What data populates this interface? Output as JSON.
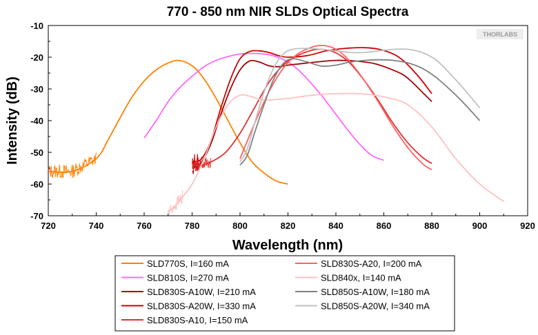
{
  "watermark": "THORLABS",
  "chart_data": {
    "type": "line",
    "title": "770 - 850 nm NIR SLDs Optical Spectra",
    "xlabel": "Wavelength (nm)",
    "ylabel": "Intensity (dB)",
    "xlim": [
      720,
      920
    ],
    "ylim": [
      -70,
      -10
    ],
    "xticks": [
      720,
      740,
      760,
      780,
      800,
      820,
      840,
      860,
      880,
      900,
      920
    ],
    "yticks": [
      -10,
      -20,
      -30,
      -40,
      -50,
      -60,
      -70
    ],
    "grid": false,
    "legend_position": "bottom",
    "series": [
      {
        "name": "SLD770S, I=160 mA",
        "color": "#ff8000",
        "noisy_below": 740,
        "x": [
          720,
          730,
          740,
          745,
          750,
          755,
          760,
          765,
          770,
          774,
          778,
          782,
          786,
          790,
          795,
          800,
          805,
          810,
          815,
          820
        ],
        "y": [
          -56,
          -56,
          -52,
          -46,
          -39,
          -32.5,
          -27.5,
          -24,
          -21.8,
          -21,
          -21.8,
          -24,
          -28,
          -33,
          -40,
          -47,
          -53,
          -56.5,
          -59,
          -60
        ]
      },
      {
        "name": "SLD810S, I=270 mA",
        "color": "#ff66ff",
        "x": [
          760,
          765,
          770,
          775,
          780,
          785,
          790,
          795,
          800,
          805,
          810,
          815,
          820,
          825,
          830,
          835,
          840,
          845,
          850,
          855,
          860
        ],
        "y": [
          -45.5,
          -40,
          -34,
          -29.5,
          -26,
          -23,
          -21,
          -19.8,
          -19,
          -18.8,
          -19,
          -19.8,
          -21.5,
          -24.5,
          -28.5,
          -33,
          -38,
          -43,
          -47.5,
          -51,
          -52.5
        ]
      },
      {
        "name": "SLD830S-A10W, I=210 mA",
        "color": "#a50000",
        "noisy_below": 784,
        "x": [
          780,
          784,
          788,
          792,
          796,
          800,
          804,
          808,
          812,
          816,
          820,
          826,
          832,
          840,
          848,
          856,
          862,
          868,
          872,
          876,
          880
        ],
        "y": [
          -55,
          -53,
          -47,
          -38,
          -30,
          -24,
          -21.2,
          -21.5,
          -22.7,
          -23,
          -22.5,
          -22,
          -21.5,
          -21,
          -21.2,
          -22,
          -23.5,
          -25.5,
          -28,
          -31,
          -34
        ]
      },
      {
        "name": "SLD830S-A20W, I=330 mA",
        "color": "#cc0000",
        "noisy_below": 784,
        "x": [
          780,
          784,
          788,
          792,
          796,
          800,
          804,
          808,
          812,
          816,
          820,
          828,
          836,
          844,
          852,
          858,
          864,
          868,
          872,
          876,
          880
        ],
        "y": [
          -53,
          -52,
          -46,
          -36,
          -27,
          -20.5,
          -18.2,
          -18,
          -18.5,
          -19.5,
          -20,
          -19.5,
          -18,
          -17.2,
          -17,
          -17.5,
          -19,
          -21,
          -24,
          -27.5,
          -31.5
        ]
      },
      {
        "name": "SLD830S-A10, I=150 mA",
        "color": "#e03030",
        "noisy_below": 788,
        "x": [
          780,
          784,
          788,
          794,
          800,
          806,
          812,
          818,
          824,
          830,
          834,
          838,
          842,
          846,
          852,
          858,
          864,
          870,
          876,
          880
        ],
        "y": [
          -54,
          -54,
          -53,
          -50,
          -44,
          -36,
          -28,
          -22.5,
          -19.5,
          -17.8,
          -17.5,
          -18,
          -19.5,
          -22,
          -27.5,
          -34,
          -41,
          -47,
          -51.5,
          -53.5
        ]
      },
      {
        "name": "SLD830S-A20, I=200 mA",
        "color": "#ff6060",
        "x": [
          800,
          806,
          812,
          818,
          824,
          830,
          834,
          838,
          842,
          846,
          852,
          858,
          864,
          870,
          876,
          880
        ],
        "y": [
          -52,
          -41,
          -31,
          -23.5,
          -19,
          -16.8,
          -16.3,
          -16.8,
          -18.5,
          -21.5,
          -27.5,
          -34.5,
          -42,
          -48.5,
          -53.5,
          -55.5
        ]
      },
      {
        "name": "SLD840x, I=140 mA",
        "color": "#ffc0c0",
        "noisy_below": 776,
        "x": [
          770,
          775,
          780,
          785,
          790,
          795,
          800,
          805,
          810,
          820,
          830,
          840,
          850,
          860,
          870,
          880,
          890,
          900,
          910
        ],
        "y": [
          -69,
          -65,
          -60,
          -52,
          -42,
          -35,
          -32,
          -32.5,
          -33.5,
          -33,
          -32,
          -31.5,
          -31.5,
          -32.5,
          -35,
          -42,
          -52,
          -60,
          -65.5
        ]
      },
      {
        "name": "SLD850S-A10W, I=180 mA",
        "color": "#808080",
        "x": [
          800,
          803,
          806,
          810,
          814,
          818,
          822,
          828,
          834,
          840,
          846,
          852,
          858,
          864,
          870,
          876,
          882,
          888,
          894,
          900
        ],
        "y": [
          -54,
          -51,
          -44,
          -35,
          -27,
          -22,
          -20.5,
          -21.5,
          -22.8,
          -22.5,
          -21.5,
          -21,
          -20.8,
          -21,
          -21.8,
          -23.5,
          -26.5,
          -30.5,
          -35,
          -40
        ]
      },
      {
        "name": "SLD850S-A20W, I=340 mA",
        "color": "#c0c0c0",
        "x": [
          800,
          803,
          806,
          810,
          814,
          818,
          822,
          828,
          834,
          840,
          846,
          852,
          858,
          864,
          870,
          876,
          882,
          888,
          894,
          900
        ],
        "y": [
          -53,
          -49,
          -41,
          -31,
          -23.5,
          -19,
          -17.5,
          -17.2,
          -17.5,
          -18,
          -18.5,
          -18.5,
          -18,
          -17.5,
          -17.5,
          -18.5,
          -21,
          -25.5,
          -30.5,
          -36
        ]
      }
    ]
  }
}
